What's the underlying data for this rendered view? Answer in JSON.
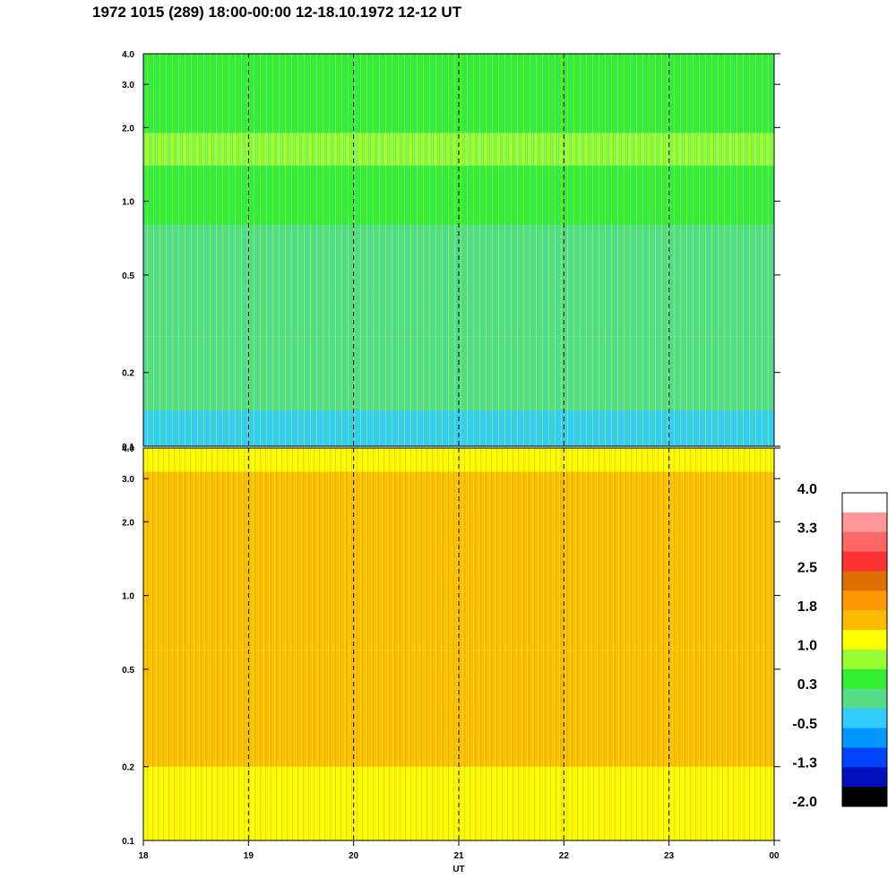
{
  "title": "1972 1015 (289) 18:00-00:00 12-18.10.1972  12-12 UT",
  "chart_data": [
    {
      "type": "heatmap",
      "panel": "top",
      "xlabel": "",
      "ylabel": "",
      "xlim": [
        18,
        24
      ],
      "ylim": [
        0.1,
        4.0
      ],
      "yscale": "log",
      "y_ticks": [
        "0.1",
        "0.2",
        "0.5",
        "1.0",
        "2.0",
        "3.0",
        "4.0"
      ],
      "y_tick_values": [
        0.1,
        0.2,
        0.5,
        1.0,
        2.0,
        3.0,
        4.0
      ],
      "dashed_vlines": [
        19,
        20,
        21,
        22,
        23
      ],
      "bands": [
        {
          "y_from": 0.1,
          "y_to": 0.14,
          "value": -0.5
        },
        {
          "y_from": 0.14,
          "y_to": 0.28,
          "value": 0.0
        },
        {
          "y_from": 0.28,
          "y_to": 0.8,
          "value": 0.2
        },
        {
          "y_from": 0.8,
          "y_to": 1.4,
          "value": 0.3
        },
        {
          "y_from": 1.4,
          "y_to": 1.9,
          "value": 0.9
        },
        {
          "y_from": 1.9,
          "y_to": 4.0,
          "value": 0.4
        }
      ]
    },
    {
      "type": "heatmap",
      "panel": "bottom",
      "xlabel": "UT",
      "ylabel": "",
      "xlim": [
        18,
        24
      ],
      "ylim": [
        0.1,
        4.0
      ],
      "yscale": "log",
      "x_ticks": [
        "18",
        "19",
        "20",
        "21",
        "22",
        "23",
        "00"
      ],
      "x_tick_values": [
        18,
        19,
        20,
        21,
        22,
        23,
        24
      ],
      "y_ticks": [
        "0.1",
        "0.2",
        "0.5",
        "1.0",
        "2.0",
        "3.0",
        "4.0"
      ],
      "y_tick_values": [
        0.1,
        0.2,
        0.5,
        1.0,
        2.0,
        3.0,
        4.0
      ],
      "dashed_vlines": [
        19,
        20,
        21,
        22,
        23
      ],
      "bands": [
        {
          "y_from": 0.1,
          "y_to": 0.2,
          "value": 1.1
        },
        {
          "y_from": 0.2,
          "y_to": 0.6,
          "value": 1.7
        },
        {
          "y_from": 0.6,
          "y_to": 3.2,
          "value": 1.5
        },
        {
          "y_from": 3.2,
          "y_to": 4.0,
          "value": 1.0
        }
      ]
    }
  ],
  "colorbar": {
    "labels": [
      "4.0",
      "3.3",
      "2.5",
      "1.8",
      "1.0",
      "0.3",
      "-0.5",
      "-1.3",
      "-2.0"
    ],
    "colors": [
      "#ffffff",
      "#ff9999",
      "#ff6666",
      "#ff3333",
      "#dd7000",
      "#ff9900",
      "#ffbb00",
      "#ffff00",
      "#99ff33",
      "#33ee33",
      "#55dd88",
      "#33ccff",
      "#0099ff",
      "#0044ff",
      "#0011bb",
      "#000000"
    ]
  }
}
